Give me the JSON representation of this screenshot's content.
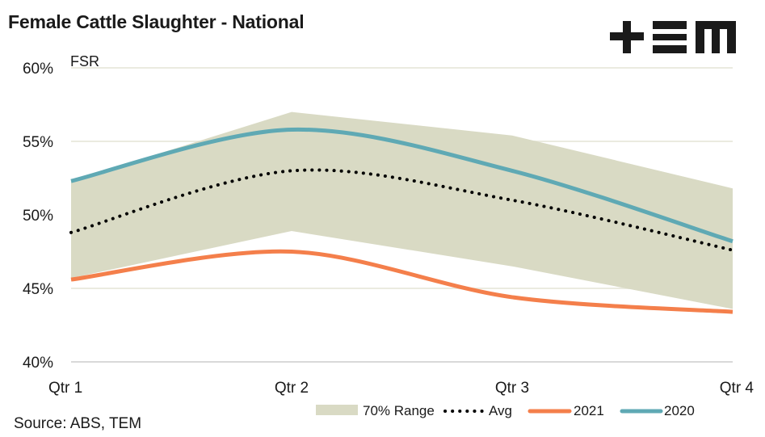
{
  "header": {
    "title": "Female Cattle Slaughter - National",
    "logo": "tem-logo"
  },
  "footer": {
    "source": "Source: ABS, TEM"
  },
  "colors": {
    "range": "#d9dac4",
    "avg": "#000000",
    "y2021": "#f47f4b",
    "y2020": "#5fa9b4",
    "grid": "#ebebe0"
  },
  "chart_data": {
    "type": "line",
    "title": "Female Cattle Slaughter - National",
    "ylabel": "FSR",
    "xlabel": "",
    "categories": [
      "Qtr 1",
      "Qtr 2",
      "Qtr 3",
      "Qtr 4"
    ],
    "ylim": [
      40,
      60
    ],
    "yticks": [
      40,
      45,
      50,
      55,
      60
    ],
    "ytick_labels": [
      "40%",
      "45%",
      "50%",
      "55%",
      "60%"
    ],
    "grid": true,
    "legend_position": "bottom-right",
    "range": {
      "name": "70% Range",
      "upper": [
        52.3,
        57.0,
        55.4,
        51.8
      ],
      "lower": [
        45.7,
        48.9,
        46.5,
        43.6
      ]
    },
    "series": [
      {
        "name": "Avg",
        "style": "dotted",
        "values": [
          48.8,
          53.0,
          51.0,
          47.6
        ]
      },
      {
        "name": "2021",
        "style": "solid",
        "values": [
          45.6,
          47.5,
          44.4,
          43.4
        ]
      },
      {
        "name": "2020",
        "style": "solid",
        "values": [
          52.3,
          55.8,
          53.0,
          48.2
        ]
      }
    ]
  }
}
